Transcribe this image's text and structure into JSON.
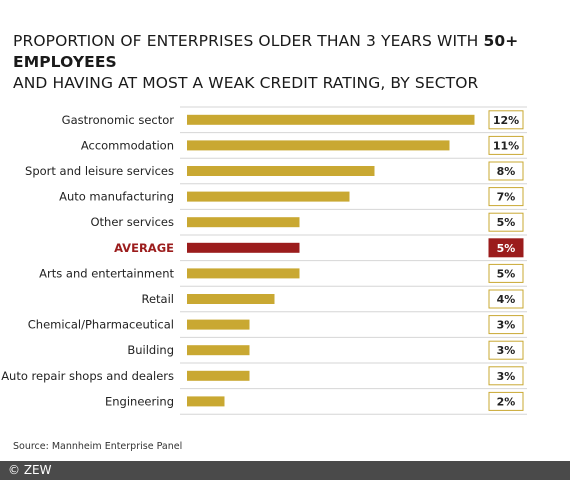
{
  "title_part1": "PROPORTION OF ENTERPRISES OLDER THAN 3 YEARS WITH ",
  "title_bold": "50+ EMPLOYEES",
  "title_part2": "AND HAVING AT MOST A WEAK CREDIT RATING, BY SECTOR",
  "source": "Source: Mannheim Enterprise Panel",
  "footer": "© ZEW",
  "colors": {
    "bar": "#c9a832",
    "highlight": "#9b1c1c",
    "divider": "#d6d6d6"
  },
  "chart_data": {
    "type": "bar",
    "orientation": "horizontal",
    "categories": [
      "Gastronomic sector",
      "Accommodation",
      "Sport and leisure services",
      "Auto manufacturing",
      "Other services",
      "AVERAGE",
      "Arts and entertainment",
      "Retail",
      "Chemical/Pharmaceutical",
      "Building",
      "Auto repair shops and dealers",
      "Engineering"
    ],
    "values": [
      11.5,
      10.5,
      7.5,
      6.5,
      4.5,
      4.5,
      4.5,
      3.5,
      2.5,
      2.5,
      2.5,
      1.5
    ],
    "value_labels": [
      "12%",
      "11%",
      "8%",
      "7%",
      "5%",
      "5%",
      "5%",
      "4%",
      "3%",
      "3%",
      "3%",
      "2%"
    ],
    "highlight": "AVERAGE",
    "grid": false
  }
}
